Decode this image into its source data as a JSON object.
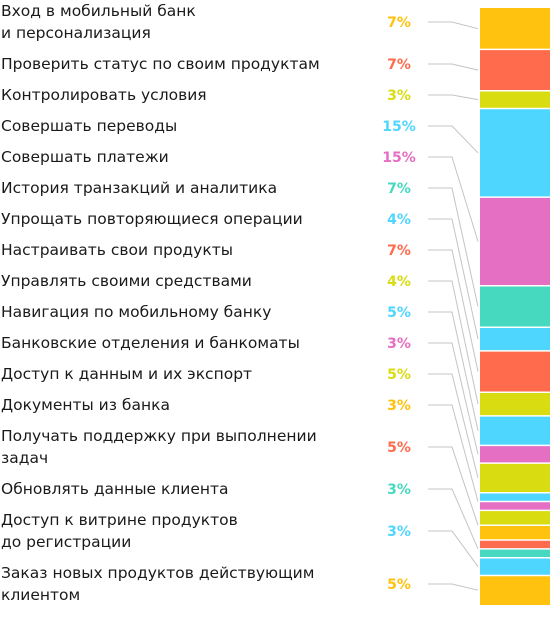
{
  "chart_data": {
    "type": "bar",
    "orientation": "stacked-vertical-single",
    "unit": "%",
    "categories": [
      [
        "Вход в мобильный банк",
        "и персонализация"
      ],
      [
        "Проверить статус по своим продуктам"
      ],
      [
        "Контролировать условия"
      ],
      [
        "Совершать переводы"
      ],
      [
        "Совершать платежи"
      ],
      [
        "История транзакций и аналитика"
      ],
      [
        "Упрощать повторяющиеся операции"
      ],
      [
        "Настраивать свои продукты"
      ],
      [
        "Управлять своими средствами"
      ],
      [
        "Навигация по мобильному банку"
      ],
      [
        "Банковские отделения и банкоматы"
      ],
      [
        "Доступ к данным и их экспорт"
      ],
      [
        "Документы из банка"
      ],
      [
        "Получать поддержку при выполнении",
        "задач"
      ],
      [
        "Обновлять данные клиента"
      ],
      [
        "Доступ к витрине продуктов",
        "до регистрации"
      ],
      [
        "Заказ новых продуктов действующим",
        "клиентом"
      ]
    ],
    "values": [
      7,
      7,
      3,
      15,
      15,
      7,
      4,
      7,
      4,
      5,
      3,
      5,
      3,
      5,
      3,
      3,
      5
    ],
    "value_labels": [
      "7%",
      "7%",
      "3%",
      "15%",
      "15%",
      "7%",
      "4%",
      "7%",
      "4%",
      "5%",
      "3%",
      "5%",
      "3%",
      "5%",
      "3%",
      "3%",
      "5%"
    ],
    "colors": [
      "#FFC20E",
      "#FF6B4D",
      "#D9DC10",
      "#4FD6FF",
      "#E56FC2",
      "#47D9C0",
      "#4FD6FF",
      "#FF6B4D",
      "#D9DC10",
      "#4FD6FF",
      "#E56FC2",
      "#D9DC10",
      "#FFC20E",
      "#FF6B4D",
      "#47D9C0",
      "#4FD6FF",
      "#FFC20E"
    ],
    "segment_colors": [
      "#FFC20E",
      "#FF6B4D",
      "#D9DC10",
      "#4FD6FF",
      "#E56FC2",
      "#47D9C0",
      "#4FD6FF",
      "#FF6B4D",
      "#D9DC10",
      "#4FD6FF",
      "#E56FC2",
      "#D9DC10",
      "#4FD6FF",
      "#E56FC2",
      "#D9DC10",
      "#FFC20E",
      "#FF6B4D",
      "#47D9C0",
      "#4FD6FF",
      "#FFC20E"
    ],
    "title": "",
    "xlabel": "",
    "ylabel": "",
    "grid": false,
    "legend": "none"
  }
}
